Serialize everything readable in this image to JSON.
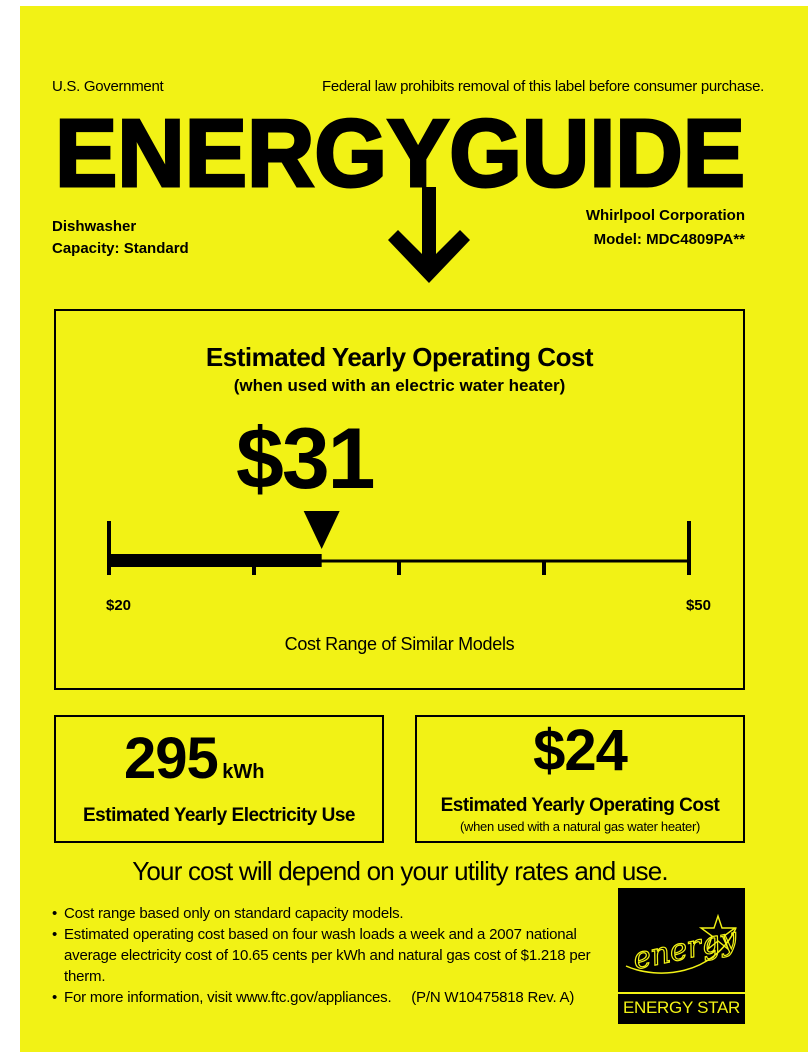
{
  "header": {
    "government": "U.S. Government",
    "notice": "Federal law prohibits removal of this label before consumer purchase.",
    "title": "ENERGYGUIDE"
  },
  "appliance": {
    "type": "Dishwasher",
    "capacity": "Capacity: Standard",
    "manufacturer": "Whirlpool Corporation",
    "model": "Model: MDC4809PA**"
  },
  "cost_box": {
    "heading": "Estimated Yearly Operating Cost",
    "subheading": "(when used with an electric water heater)",
    "cost": "$31",
    "range_min_label": "$20",
    "range_max_label": "$50",
    "range_caption": "Cost Range of Similar Models"
  },
  "chart_data": {
    "type": "bar",
    "title": "Estimated Yearly Operating Cost",
    "categories": [
      "Cost Range of Similar Models"
    ],
    "range": [
      20,
      50
    ],
    "value": 31,
    "xlabel": "Cost Range of Similar Models"
  },
  "electricity": {
    "value": "295",
    "unit": "kWh",
    "caption": "Estimated Yearly Electricity Use"
  },
  "gas": {
    "value": "$24",
    "caption": "Estimated Yearly Operating Cost",
    "subcaption": "(when used with a natural gas water heater)"
  },
  "tagline": "Your cost will depend on your utility rates and use.",
  "bullets": [
    "Cost range based only on standard capacity models.",
    "Estimated operating cost based on four wash loads a week and a 2007 national average electricity cost of 10.65 cents per kWh and natural gas cost of  $1.218 per therm.",
    "For more information, visit www.ftc.gov/appliances.     (P/N W10475818 Rev. A)"
  ],
  "energy_star": {
    "script": "energy",
    "caption": "ENERGY STAR"
  },
  "colors": {
    "label_yellow": "#f2f215",
    "ink": "#000000"
  }
}
